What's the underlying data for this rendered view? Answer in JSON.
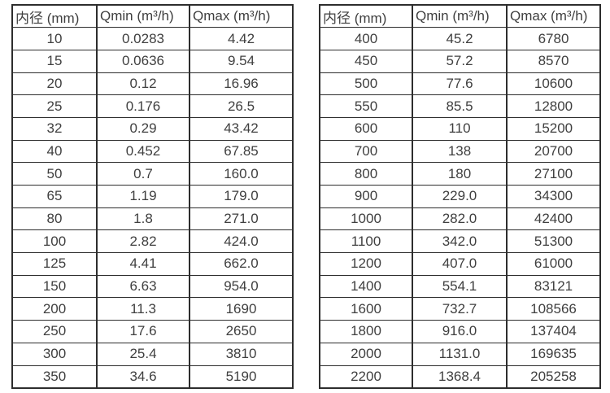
{
  "page": {
    "background_color": "#ffffff",
    "text_color": "#3f3f3f",
    "border_color": "#2d2d2d"
  },
  "tables": [
    {
      "title": "flow-rates-small-diameters",
      "headers": [
        "内径 (mm)",
        "Qmin (m³/h)",
        "Qmax (m³/h)"
      ],
      "rows": [
        [
          "10",
          "0.0283",
          "4.42"
        ],
        [
          "15",
          "0.0636",
          "9.54"
        ],
        [
          "20",
          "0.12",
          "16.96"
        ],
        [
          "25",
          "0.176",
          "26.5"
        ],
        [
          "32",
          "0.29",
          "43.42"
        ],
        [
          "40",
          "0.452",
          "67.85"
        ],
        [
          "50",
          "0.7",
          "160.0"
        ],
        [
          "65",
          "1.19",
          "179.0"
        ],
        [
          "80",
          "1.8",
          "271.0"
        ],
        [
          "100",
          "2.82",
          "424.0"
        ],
        [
          "125",
          "4.41",
          "662.0"
        ],
        [
          "150",
          "6.63",
          "954.0"
        ],
        [
          "200",
          "11.3",
          "1690"
        ],
        [
          "250",
          "17.6",
          "2650"
        ],
        [
          "300",
          "25.4",
          "3810"
        ],
        [
          "350",
          "34.6",
          "5190"
        ]
      ]
    },
    {
      "title": "flow-rates-large-diameters",
      "headers": [
        "内径 (mm)",
        "Qmin (m³/h)",
        "Qmax (m³/h)"
      ],
      "rows": [
        [
          "400",
          "45.2",
          "6780"
        ],
        [
          "450",
          "57.2",
          "8570"
        ],
        [
          "500",
          "77.6",
          "10600"
        ],
        [
          "550",
          "85.5",
          "12800"
        ],
        [
          "600",
          "110",
          "15200"
        ],
        [
          "700",
          "138",
          "20700"
        ],
        [
          "800",
          "180",
          "27100"
        ],
        [
          "900",
          "229.0",
          "34300"
        ],
        [
          "1000",
          "282.0",
          "42400"
        ],
        [
          "1100",
          "342.0",
          "51300"
        ],
        [
          "1200",
          "407.0",
          "61000"
        ],
        [
          "1400",
          "554.1",
          "83121"
        ],
        [
          "1600",
          "732.7",
          "108566"
        ],
        [
          "1800",
          "916.0",
          "137404"
        ],
        [
          "2000",
          "1131.0",
          "169635"
        ],
        [
          "2200",
          "1368.4",
          "205258"
        ]
      ]
    }
  ]
}
